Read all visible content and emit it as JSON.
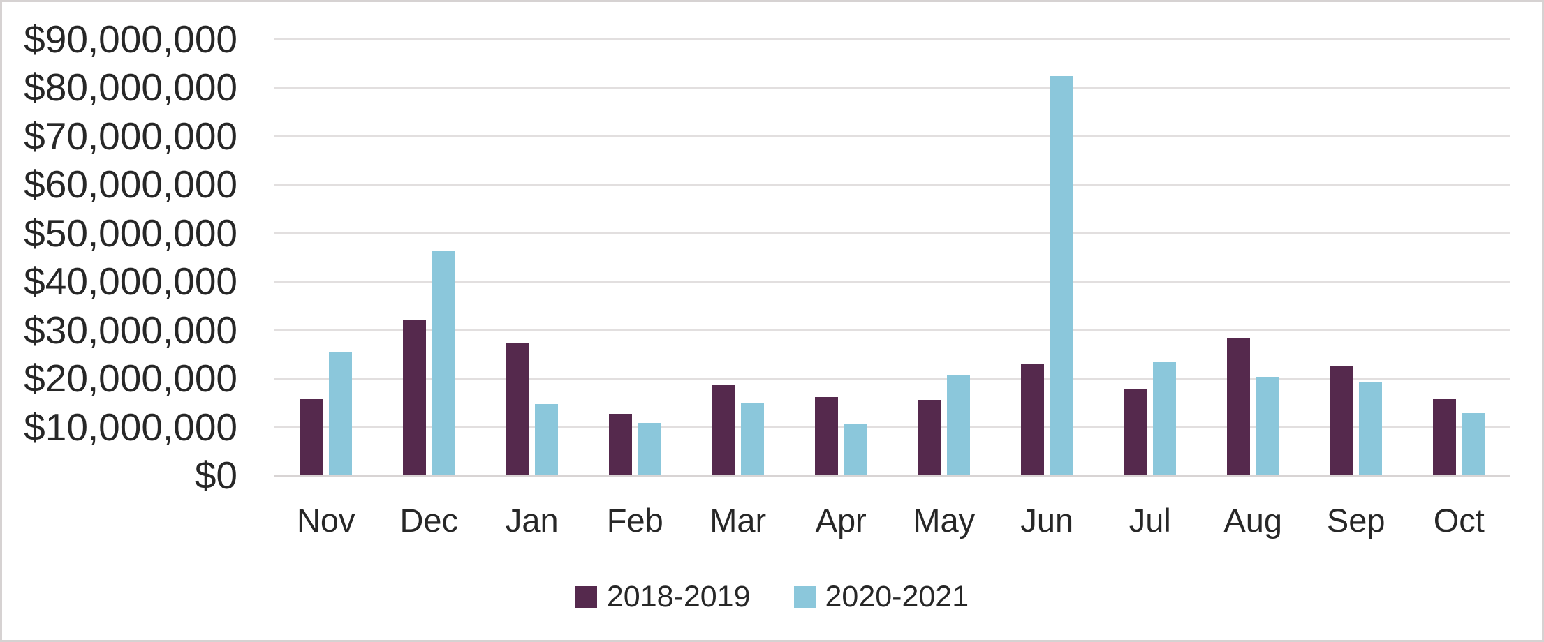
{
  "chart_data": {
    "type": "bar",
    "title": "",
    "categories": [
      "Nov",
      "Dec",
      "Jan",
      "Feb",
      "Mar",
      "Apr",
      "May",
      "Jun",
      "Jul",
      "Aug",
      "Sep",
      "Oct"
    ],
    "series": [
      {
        "name": "2018-2019",
        "color": "#55294d",
        "values": [
          15700000,
          32000000,
          27400000,
          12700000,
          18600000,
          16100000,
          15600000,
          22900000,
          17800000,
          28200000,
          22600000,
          15700000
        ]
      },
      {
        "name": "2020-2021",
        "color": "#8bc7db",
        "values": [
          25400000,
          46400000,
          14700000,
          10800000,
          14900000,
          10500000,
          20600000,
          82300000,
          23300000,
          20300000,
          19300000,
          12800000
        ]
      }
    ],
    "xlabel": "",
    "ylabel": "",
    "ylim": [
      0,
      90000000
    ],
    "ytick_step": 10000000,
    "ytick_labels": [
      "$0",
      "$10,000,000",
      "$20,000,000",
      "$30,000,000",
      "$40,000,000",
      "$50,000,000",
      "$60,000,000",
      "$70,000,000",
      "$80,000,000",
      "$90,000,000"
    ],
    "grid": "horizontal",
    "legend_position": "bottom-center"
  },
  "style_colors": {
    "gridline": "#e2dfdf",
    "axis_line": "#d8d4d4",
    "text": "#272727",
    "frame_border": "#d6d2d2",
    "background": "#ffffff"
  }
}
